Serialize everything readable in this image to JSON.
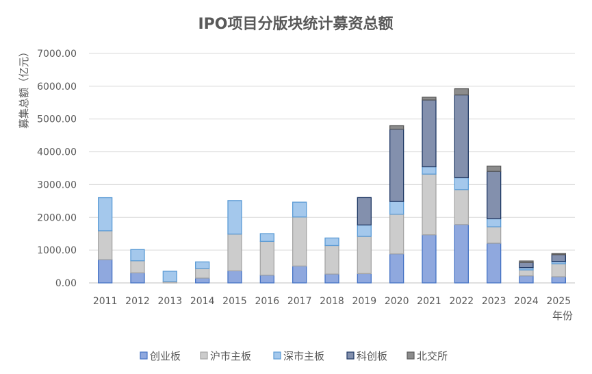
{
  "chart_data": {
    "type": "bar",
    "stacked": true,
    "title": "IPO项目分版块统计募资总额",
    "xlabel": "年份",
    "ylabel": "募集总额（亿元）",
    "ylim": [
      0,
      7000
    ],
    "yticks": [
      "0.00",
      "1000.00",
      "2000.00",
      "3000.00",
      "4000.00",
      "5000.00",
      "6000.00",
      "7000.00"
    ],
    "grid": true,
    "legend": "bottom",
    "categories": [
      "2011",
      "2012",
      "2013",
      "2014",
      "2015",
      "2016",
      "2017",
      "2018",
      "2019",
      "2020",
      "2021",
      "2022",
      "2023",
      "2024",
      "2025"
    ],
    "series": [
      {
        "name": "创业板",
        "color": "#8fa8de",
        "border": "#4472c4",
        "values": [
          710,
          307,
          0,
          146,
          369,
          236,
          515,
          270,
          285,
          884,
          1468,
          1781,
          1211,
          216,
          188
        ]
      },
      {
        "name": "沪市主板",
        "color": "#cccccc",
        "border": "#a5a5a5",
        "values": [
          880,
          368,
          48,
          292,
          1120,
          1031,
          1496,
          870,
          1134,
          1211,
          1851,
          1065,
          501,
          181,
          397
        ]
      },
      {
        "name": "深市主板",
        "color": "#a4c8ec",
        "border": "#5b9bd5",
        "values": [
          1010,
          342,
          307,
          203,
          1022,
          236,
          452,
          230,
          348,
          389,
          223,
          363,
          244,
          69,
          69
        ]
      },
      {
        "name": "科创板",
        "color": "#8390ad",
        "border": "#1f3864",
        "values": [
          0,
          0,
          0,
          0,
          0,
          0,
          0,
          0,
          836,
          2206,
          2038,
          2526,
          1447,
          154,
          208
        ]
      },
      {
        "name": "北交所",
        "color": "#8c8c8c",
        "border": "#595959",
        "values": [
          0,
          0,
          0,
          0,
          0,
          0,
          0,
          0,
          0,
          105,
          84,
          188,
          161,
          48,
          36
        ]
      }
    ]
  }
}
